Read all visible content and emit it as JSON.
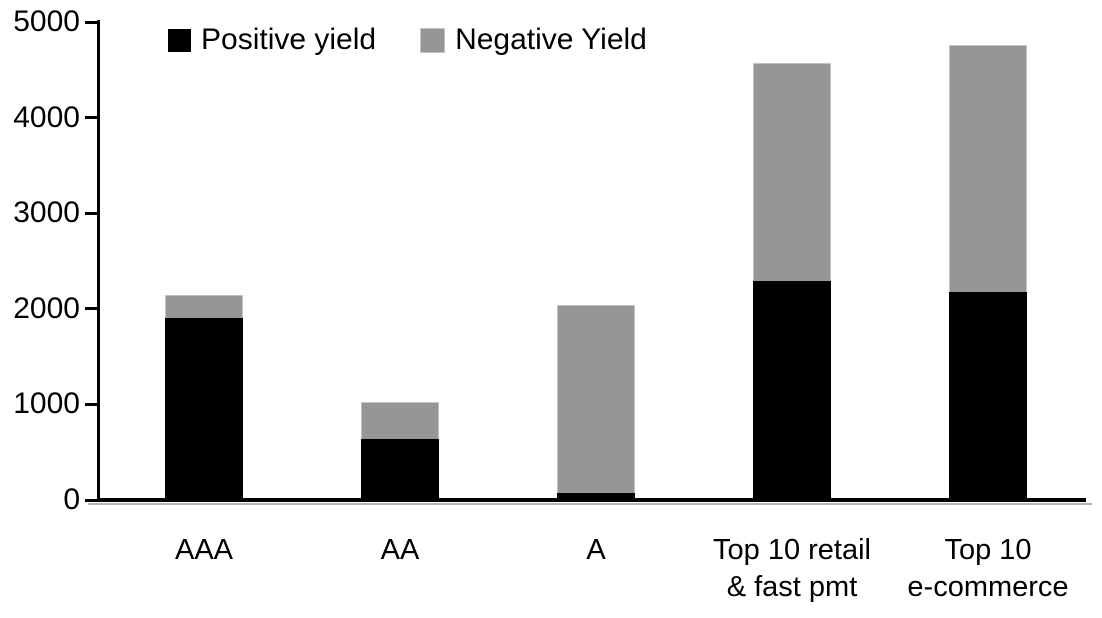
{
  "chart_data": {
    "type": "bar",
    "stacked": true,
    "title": "",
    "xlabel": "",
    "ylabel": "",
    "categories": [
      "AAA",
      "AA",
      "A",
      "Top 10 retail\n& fast pmt",
      "Top 10\ne-commerce"
    ],
    "series": [
      {
        "name": "Positive yield",
        "color": "#000000",
        "values": [
          1880,
          620,
          50,
          2270,
          2150
        ]
      },
      {
        "name": "Negative Yield",
        "color": "#969696",
        "values": [
          240,
          380,
          1970,
          2280,
          2590
        ]
      }
    ],
    "totals": [
      2120,
      1000,
      2020,
      4550,
      4740
    ],
    "ylim": [
      0,
      5000
    ],
    "yticks": [
      0,
      1000,
      2000,
      3000,
      4000,
      5000
    ],
    "grid": false,
    "legend_position": "top-inside"
  },
  "colors": {
    "axis": "#000000",
    "background": "#ffffff",
    "positive_series": "#000000",
    "negative_series": "#969696",
    "negative_border": "#c3c3c3"
  }
}
